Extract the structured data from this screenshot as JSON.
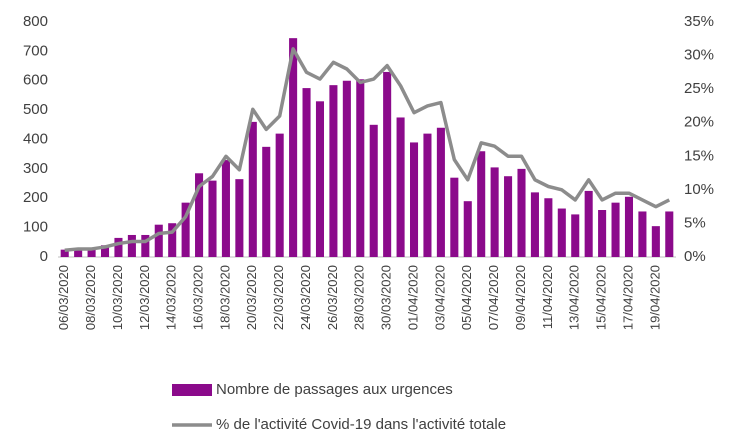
{
  "chart_data": {
    "type": "bar",
    "categories": [
      "06/03/2020",
      null,
      "08/03/2020",
      null,
      "10/03/2020",
      null,
      "12/03/2020",
      null,
      "14/03/2020",
      null,
      "16/03/2020",
      null,
      "18/03/2020",
      null,
      "20/03/2020",
      null,
      "22/03/2020",
      null,
      "24/03/2020",
      null,
      "26/03/2020",
      null,
      "28/03/2020",
      null,
      "30/03/2020",
      null,
      "01/04/2020",
      null,
      "03/04/2020",
      null,
      "05/04/2020",
      null,
      "07/04/2020",
      null,
      "09/04/2020",
      null,
      "11/04/2020",
      null,
      "13/04/2020",
      null,
      "15/04/2020",
      null,
      "17/04/2020",
      null,
      "19/04/2020",
      null
    ],
    "series": [
      {
        "name": "Nombre de passages aux urgences",
        "type": "bar",
        "color": "#8b0a8b",
        "values": [
          25,
          30,
          30,
          40,
          65,
          75,
          75,
          110,
          115,
          185,
          285,
          260,
          330,
          265,
          460,
          375,
          420,
          745,
          575,
          530,
          585,
          600,
          605,
          450,
          630,
          475,
          390,
          420,
          440,
          270,
          190,
          360,
          305,
          275,
          300,
          220,
          200,
          165,
          145,
          225,
          160,
          185,
          205,
          155,
          105,
          155
        ]
      },
      {
        "name": "% de l'activité Covid-19 dans l'activité totale",
        "type": "line",
        "axis": "y2",
        "color": "#8c8c8c",
        "values": [
          1,
          1.2,
          1.2,
          1.5,
          2,
          2.3,
          2.3,
          3.5,
          3.7,
          6,
          10.5,
          12,
          15,
          13,
          22,
          19,
          21,
          31,
          27.5,
          26.5,
          29,
          28,
          26,
          26.5,
          28.5,
          25.5,
          21.5,
          22.5,
          23,
          14.5,
          11.5,
          17,
          16.5,
          15,
          15,
          11.5,
          10.5,
          10,
          8.5,
          11.5,
          8.5,
          9.5,
          9.5,
          8.5,
          7.5,
          8.5
        ]
      }
    ],
    "ylim": [
      0,
      800
    ],
    "yticks": [
      0,
      100,
      200,
      300,
      400,
      500,
      600,
      700,
      800
    ],
    "y2lim": [
      0,
      35
    ],
    "y2ticks": [
      {
        "value": 0,
        "label": "0%"
      },
      {
        "value": 5,
        "label": "5%"
      },
      {
        "value": 10,
        "label": "10%"
      },
      {
        "value": 15,
        "label": "15%"
      },
      {
        "value": 20,
        "label": "20%"
      },
      {
        "value": 25,
        "label": "25%"
      },
      {
        "value": 30,
        "label": "30%"
      },
      {
        "value": 35,
        "label": "35%"
      }
    ],
    "grid": false,
    "legend": "bottom"
  }
}
